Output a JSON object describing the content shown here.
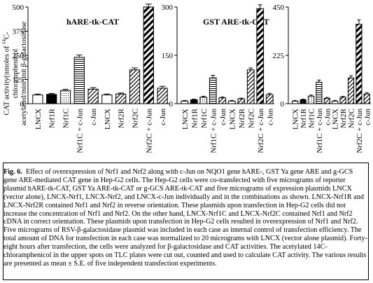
{
  "ylabel": {
    "line1_pre": "CAT activity(nmoles of ",
    "line1_sup": "14",
    "line1_post": "C-chloramphenicol",
    "line2": "acetylated/min/unit ",
    "line2_sym": "β",
    "line2_post": "-galactosidase"
  },
  "colors": {
    "ink": "#000000",
    "hatch": "#000000",
    "background": "#ffffff"
  },
  "chart_data": [
    {
      "type": "bar",
      "title": "hARE-tk-CAT",
      "ylabel": "CAT activity(nmoles of 14C-chloramphenicol acetylated/min/unit β-galactosidase",
      "ylim": [
        0,
        500
      ],
      "yticks": [
        "500",
        "375",
        "250",
        "125",
        "0"
      ],
      "categories": [
        "LNCX",
        "Nrf1R",
        "Nrf1C",
        "Nrf1C + c-Jun",
        "c-Jun",
        "LNCX",
        "Nrf2R",
        "Nrf2C",
        "Nrf2C + c-Jun",
        "c-Jun"
      ],
      "values": [
        45,
        48,
        68,
        240,
        75,
        45,
        50,
        175,
        500,
        80
      ],
      "errors": [
        5,
        5,
        6,
        12,
        8,
        5,
        5,
        10,
        15,
        10
      ],
      "patterns": [
        "white",
        "black",
        "dots",
        "hlines",
        "diagonal",
        "white",
        "diagonal",
        "diagonal",
        "thick-diagonal",
        "diagonal"
      ]
    },
    {
      "type": "bar",
      "title": "GST ARE-tk-CAT",
      "ylim": [
        0,
        300
      ],
      "yticks": [
        "300",
        "150",
        "0"
      ],
      "categories": [
        "LNCX",
        "Nrf1R",
        "Nrf1C",
        "Nrf1C + c-Jun",
        "c-Jun",
        "LNCX",
        "Nrf2R",
        "Nrf2C",
        "Nrf2C + c-Jun",
        "c-Jun"
      ],
      "values": [
        8,
        12,
        20,
        80,
        18,
        8,
        15,
        105,
        295,
        28
      ],
      "errors": [
        2,
        2,
        3,
        8,
        3,
        2,
        2,
        6,
        12,
        4
      ],
      "patterns": [
        "white",
        "black",
        "dots",
        "hlines",
        "diagonal",
        "white",
        "diagonal",
        "diagonal",
        "thick-diagonal",
        "diagonal"
      ]
    },
    {
      "type": "bar",
      "title": "",
      "ylim": [
        0,
        450
      ],
      "yticks": [
        "450",
        "225",
        "0"
      ],
      "categories": [
        "LNCX",
        "Nrf1R",
        "Nrf1C",
        "Nrf1C + c-Jun",
        "c-Jun",
        "LNCX",
        "Nrf2R",
        "Nrf2C",
        "Nrf2C + c-Jun",
        "c-Jun"
      ],
      "values": [
        12,
        18,
        35,
        100,
        25,
        12,
        30,
        120,
        370,
        45
      ],
      "errors": [
        3,
        3,
        5,
        10,
        4,
        3,
        4,
        10,
        20,
        6
      ],
      "patterns": [
        "white",
        "black",
        "dots",
        "hlines",
        "diagonal",
        "white",
        "diagonal",
        "diagonal",
        "thick-diagonal",
        "diagonal"
      ]
    }
  ],
  "caption": {
    "label": "Fig. 6.",
    "text": "Effect of overexpression of Nrf1 and Nrf2 along with c-Jun on NQO1 gene hARE-, GST Ya gene ARE and g-GCS gene ARE-mediated CAT gene in Hep-G2 cells. The Hep-G2 cells were co-transfected with five micrograms of reporter plasmid hARE-tk-CAT, GST Ya ARE-tk-CAT or g-GCS ARE-tk-CAT and five micrograms of expression plasmids LNCX (vector alone), LNCX-Nrf1, LNCX-Nrf2, and LNCX-c-Jun individually and in the combinations as shown. LNCX-Nrf1R and LNCX-Nrf2R contained Nrf1 and Nrf2 in reverse orientation. These plasmids upon transfection in Hep-G2 cells did not increase the concentration of Nrf1 and Nrf2. On the other hand, LNCX-Nrf1C and LNCX-Nrf2C contained Nrf1 and Nrf2 cDNA in correct orientation. These plasmids upon transfection in Hep-G2 cells resulted in overexpression of Nrf1 and Nrf2. Five micrograms of RSV-β-galactosidase plasmid was included in each case as internal control of transfection efficiency. The total amount of DNA for transfection in each case was normalized to 20 micrograms with LNCX (vector alone plasmid). Forty-eight hours after transfection, the cells were analyzed for β-galactosidase and CAT activities. The acetylated 14C-chloramphenicol in the upper spots on TLC plates were cut out, counted and used to calculate CAT activity. The various results are presented as mean ± S.E. of five independent transfection experiments."
  }
}
